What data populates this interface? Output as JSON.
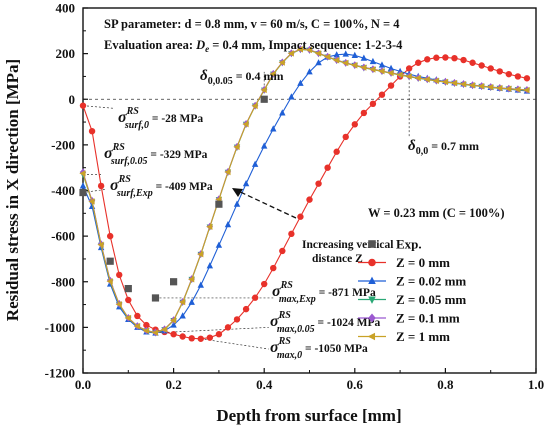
{
  "chart_data": {
    "type": "line",
    "xlabel": "Depth from surface [mm]",
    "ylabel": "Residual stress in X direction [MPa]",
    "xlim": [
      0,
      1.0
    ],
    "ylim": [
      -1200,
      400
    ],
    "x_ticks": [
      "0.0",
      "0.2",
      "0.4",
      "0.6",
      "0.8",
      "1.0"
    ],
    "y_ticks": [
      "400",
      "200",
      "0",
      "-200",
      "-400",
      "-600",
      "-800",
      "-1000",
      "-1200"
    ],
    "legend_position": "bottom-right",
    "series": [
      {
        "name": "Exp.",
        "color": "#555555",
        "marker": "square",
        "line": false,
        "x": [
          0.0,
          0.06,
          0.1,
          0.16,
          0.2,
          0.3,
          0.4
        ],
        "y": [
          -409,
          -710,
          -830,
          -871,
          -800,
          -460,
          0
        ]
      },
      {
        "name": "Z = 0 mm",
        "color": "#e8312a",
        "marker": "circle",
        "line": true,
        "x": [
          0.0,
          0.02,
          0.04,
          0.06,
          0.08,
          0.1,
          0.12,
          0.14,
          0.16,
          0.18,
          0.2,
          0.22,
          0.24,
          0.26,
          0.28,
          0.3,
          0.32,
          0.34,
          0.36,
          0.38,
          0.4,
          0.42,
          0.44,
          0.46,
          0.48,
          0.5,
          0.52,
          0.54,
          0.56,
          0.58,
          0.6,
          0.62,
          0.64,
          0.66,
          0.68,
          0.7,
          0.72,
          0.74,
          0.76,
          0.78,
          0.8,
          0.82,
          0.84,
          0.86,
          0.88,
          0.9,
          0.92,
          0.94,
          0.96,
          0.98
        ],
        "y": [
          -28,
          -140,
          -380,
          -600,
          -770,
          -880,
          -950,
          -990,
          -1010,
          -1020,
          -1030,
          -1040,
          -1048,
          -1050,
          -1045,
          -1030,
          -1000,
          -965,
          -920,
          -870,
          -810,
          -740,
          -665,
          -590,
          -515,
          -440,
          -370,
          -300,
          -230,
          -165,
          -110,
          -60,
          -20,
          20,
          60,
          100,
          135,
          160,
          175,
          182,
          183,
          180,
          172,
          160,
          148,
          135,
          122,
          110,
          100,
          92
        ]
      },
      {
        "name": "Z = 0.02 mm",
        "color": "#1f5fd6",
        "marker": "triangle-up",
        "line": true,
        "x": [
          0.0,
          0.02,
          0.04,
          0.06,
          0.08,
          0.1,
          0.12,
          0.14,
          0.16,
          0.18,
          0.2,
          0.22,
          0.24,
          0.26,
          0.28,
          0.3,
          0.32,
          0.34,
          0.36,
          0.38,
          0.4,
          0.42,
          0.44,
          0.46,
          0.48,
          0.5,
          0.52,
          0.54,
          0.56,
          0.58,
          0.6,
          0.62,
          0.64,
          0.66,
          0.68,
          0.7,
          0.72,
          0.74,
          0.76,
          0.78,
          0.8,
          0.82,
          0.84,
          0.86,
          0.88,
          0.9,
          0.92,
          0.94,
          0.96,
          0.98
        ],
        "y": [
          -380,
          -470,
          -650,
          -810,
          -910,
          -965,
          -1000,
          -1020,
          -1025,
          -1015,
          -990,
          -950,
          -890,
          -815,
          -730,
          -640,
          -550,
          -460,
          -370,
          -285,
          -205,
          -130,
          -60,
          10,
          70,
          120,
          160,
          185,
          195,
          198,
          192,
          180,
          165,
          150,
          135,
          122,
          110,
          100,
          92,
          85,
          78,
          72,
          67,
          62,
          57,
          52,
          48,
          44,
          40,
          36
        ]
      },
      {
        "name": "Z = 0.05 mm",
        "color": "#2aa876",
        "marker": "triangle-down",
        "line": true,
        "x": [
          0.0,
          0.02,
          0.04,
          0.06,
          0.08,
          0.1,
          0.12,
          0.14,
          0.16,
          0.18,
          0.2,
          0.22,
          0.24,
          0.26,
          0.28,
          0.3,
          0.32,
          0.34,
          0.36,
          0.38,
          0.4,
          0.42,
          0.44,
          0.46,
          0.48,
          0.5,
          0.52,
          0.54,
          0.56,
          0.58,
          0.6,
          0.62,
          0.64,
          0.66,
          0.68,
          0.7,
          0.72,
          0.74,
          0.76,
          0.78,
          0.8,
          0.82,
          0.84,
          0.86,
          0.88,
          0.9,
          0.92,
          0.94,
          0.96,
          0.98
        ],
        "y": [
          -329,
          -450,
          -640,
          -800,
          -900,
          -960,
          -995,
          -1015,
          -1024,
          -1010,
          -970,
          -890,
          -790,
          -680,
          -560,
          -440,
          -320,
          -210,
          -110,
          -30,
          40,
          110,
          160,
          200,
          218,
          215,
          200,
          185,
          170,
          158,
          148,
          138,
          130,
          122,
          114,
          106,
          99,
          92,
          86,
          80,
          75,
          70,
          65,
          60,
          56,
          52,
          48,
          45,
          42,
          39
        ]
      },
      {
        "name": "Z = 0.1 mm",
        "color": "#9b59d0",
        "marker": "diamond",
        "line": true,
        "x": [
          0.0,
          0.02,
          0.04,
          0.06,
          0.08,
          0.1,
          0.12,
          0.14,
          0.16,
          0.18,
          0.2,
          0.22,
          0.24,
          0.26,
          0.28,
          0.3,
          0.32,
          0.34,
          0.36,
          0.38,
          0.4,
          0.42,
          0.44,
          0.46,
          0.48,
          0.5,
          0.52,
          0.54,
          0.56,
          0.58,
          0.6,
          0.62,
          0.64,
          0.66,
          0.68,
          0.7,
          0.72,
          0.74,
          0.76,
          0.78,
          0.8,
          0.82,
          0.84,
          0.86,
          0.88,
          0.9,
          0.92,
          0.94,
          0.96,
          0.98
        ],
        "y": [
          -320,
          -445,
          -635,
          -795,
          -897,
          -958,
          -994,
          -1014,
          -1022,
          -1008,
          -968,
          -888,
          -788,
          -678,
          -558,
          -438,
          -318,
          -208,
          -108,
          -28,
          42,
          112,
          162,
          202,
          220,
          217,
          202,
          187,
          172,
          160,
          150,
          140,
          132,
          124,
          116,
          108,
          101,
          94,
          88,
          82,
          77,
          72,
          67,
          62,
          58,
          54,
          50,
          47,
          44,
          41
        ]
      },
      {
        "name": "Z = 1 mm",
        "color": "#c9a227",
        "marker": "triangle-left",
        "line": true,
        "x": [
          0.0,
          0.02,
          0.04,
          0.06,
          0.08,
          0.1,
          0.12,
          0.14,
          0.16,
          0.18,
          0.2,
          0.22,
          0.24,
          0.26,
          0.28,
          0.3,
          0.32,
          0.34,
          0.36,
          0.38,
          0.4,
          0.42,
          0.44,
          0.46,
          0.48,
          0.5,
          0.52,
          0.54,
          0.56,
          0.58,
          0.6,
          0.62,
          0.64,
          0.66,
          0.68,
          0.7,
          0.72,
          0.74,
          0.76,
          0.78,
          0.8,
          0.82,
          0.84,
          0.86,
          0.88,
          0.9,
          0.92,
          0.94,
          0.96,
          0.98
        ],
        "y": [
          -325,
          -448,
          -638,
          -798,
          -899,
          -959,
          -995,
          -1015,
          -1023,
          -1009,
          -969,
          -889,
          -789,
          -679,
          -559,
          -439,
          -319,
          -209,
          -109,
          -29,
          41,
          111,
          161,
          201,
          219,
          216,
          201,
          186,
          171,
          159,
          149,
          139,
          131,
          123,
          115,
          107,
          100,
          93,
          87,
          81,
          76,
          71,
          66,
          61,
          57,
          53,
          49,
          46,
          43,
          40
        ]
      }
    ],
    "annotations": {
      "header_line1": "SP parameter: d = 0.8 mm, v = 60 m/s, C = 100%, N = 4",
      "header_line2_prefix": "Evaluation area: ",
      "header_line2_D": "D",
      "header_line2_e": "e",
      "header_line2_suffix": " = 0.4 mm, Impact sequence: 1-2-3-4",
      "delta_symbol": "δ",
      "delta1_sub": "0,0.05",
      "delta1_val": " = 0.4 mm",
      "delta2_sub": "0,0",
      "delta2_val": " = 0.7 mm",
      "sigma_symbol": "σ",
      "sigma_sup": "RS",
      "s1_sub": "surf,0",
      "s1_val": " = -28 MPa",
      "s2_sub": "surf,0.05",
      "s2_val": " = -329 MPa",
      "s3_sub": "surf,Exp",
      "s3_val": " = -409 MPa",
      "m1_sub": "max,Exp",
      "m1_val": " = -871 MPa",
      "m2_sub": "max,0.05",
      "m2_val": " = -1024 MPa",
      "m3_sub": "max,0",
      "m3_val": " = -1050 MPa",
      "width_note": "W = 0.23 mm (C = 100%)",
      "arrow_line1": "Increasing vertical",
      "arrow_line2": "distance Z"
    }
  }
}
